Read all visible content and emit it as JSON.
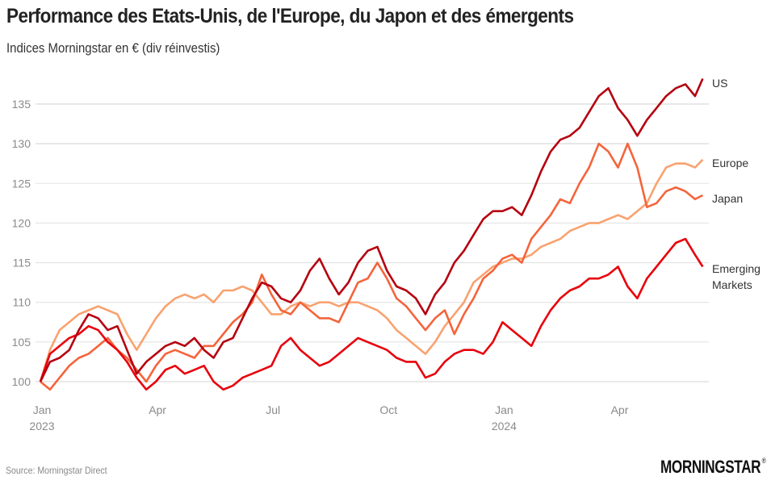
{
  "header": {
    "title": "Performance des Etats-Unis, de l'Europe, du Japon et des émergents",
    "subtitle": "Indices Morningstar en € (div réinvestis)"
  },
  "footer": {
    "source": "Source: Morningstar Direct",
    "logo_text": "MORNINGSTAR",
    "logo_mark": "®"
  },
  "chart_data": {
    "type": "line",
    "title": "Performance des Etats-Unis, de l'Europe, du Japon et des émergents",
    "subtitle": "Indices Morningstar en € (div réinvestis)",
    "xlabel": "",
    "ylabel": "",
    "ylim": [
      98,
      139
    ],
    "xlim_months": [
      0,
      17.3
    ],
    "grid": true,
    "legend": "inline-right",
    "y_ticks": [
      100,
      105,
      110,
      115,
      120,
      125,
      130,
      135
    ],
    "x_ticks": [
      {
        "month": 0,
        "label": "Jan",
        "sublabel": "2023"
      },
      {
        "month": 3,
        "label": "Apr",
        "sublabel": ""
      },
      {
        "month": 6,
        "label": "Jul",
        "sublabel": ""
      },
      {
        "month": 9,
        "label": "Oct",
        "sublabel": ""
      },
      {
        "month": 12,
        "label": "Jan",
        "sublabel": "2024"
      },
      {
        "month": 15,
        "label": "Apr",
        "sublabel": ""
      }
    ],
    "x_months": [
      0,
      0.25,
      0.5,
      0.75,
      1,
      1.25,
      1.5,
      1.75,
      2,
      2.25,
      2.5,
      2.75,
      3,
      3.25,
      3.5,
      3.75,
      4,
      4.25,
      4.5,
      4.75,
      5,
      5.25,
      5.5,
      5.75,
      6,
      6.25,
      6.5,
      6.75,
      7,
      7.25,
      7.5,
      7.75,
      8,
      8.25,
      8.5,
      8.75,
      9,
      9.25,
      9.5,
      9.75,
      10,
      10.25,
      10.5,
      10.75,
      11,
      11.25,
      11.5,
      11.75,
      12,
      12.25,
      12.5,
      12.75,
      13,
      13.25,
      13.5,
      13.75,
      14,
      14.25,
      14.5,
      14.75,
      15,
      15.25,
      15.5,
      15.75,
      16,
      16.25,
      16.5,
      16.75,
      17,
      17.2
    ],
    "series": [
      {
        "name": "US",
        "label_lines": [
          "US"
        ],
        "color": "#b5000f",
        "values": [
          100,
          102.5,
          103,
          104,
          106.5,
          108.5,
          108,
          106.5,
          107,
          104,
          101,
          102.5,
          103.5,
          104.5,
          105,
          104.5,
          105.5,
          104,
          103,
          105,
          105.5,
          108,
          110.5,
          112.5,
          112,
          110.5,
          110,
          111.5,
          114,
          115.5,
          113,
          111,
          112.5,
          115,
          116.5,
          117,
          114,
          112,
          111.5,
          110.5,
          108.5,
          111,
          112.5,
          115,
          116.5,
          118.5,
          120.5,
          121.5,
          121.5,
          122,
          121,
          123.5,
          126.5,
          129,
          130.5,
          131,
          132,
          134,
          136,
          137,
          134.5,
          133,
          131,
          133,
          134.5,
          136,
          137,
          137.5,
          136,
          138.2
        ]
      },
      {
        "name": "Europe",
        "label_lines": [
          "Europe"
        ],
        "color": "#f9a26f",
        "values": [
          100,
          104,
          106.5,
          107.5,
          108.5,
          109,
          109.5,
          109,
          108.5,
          106,
          104,
          106,
          108,
          109.5,
          110.5,
          111,
          110.5,
          111,
          110,
          111.5,
          111.5,
          112,
          111.5,
          110,
          108.5,
          108.5,
          109.5,
          110,
          109.5,
          110,
          110,
          109.5,
          110,
          110,
          109.5,
          109,
          108,
          106.5,
          105.5,
          104.5,
          103.5,
          105,
          107,
          108.5,
          110,
          112.5,
          113.5,
          114.5,
          115,
          115.5,
          115.5,
          116,
          117,
          117.5,
          118,
          119,
          119.5,
          120,
          120,
          120.5,
          121,
          120.5,
          121.5,
          122.5,
          125,
          127,
          127.5,
          127.5,
          127,
          128
        ]
      },
      {
        "name": "Japan",
        "label_lines": [
          "Japan"
        ],
        "color": "#f5643b",
        "values": [
          100,
          99,
          100.5,
          102,
          103,
          103.5,
          104.5,
          105.5,
          104,
          103,
          101.5,
          100,
          102,
          103.5,
          104,
          103.5,
          103,
          104.5,
          104.5,
          106,
          107.5,
          108.5,
          110,
          113.5,
          111,
          109,
          108.5,
          110,
          109,
          108,
          108,
          107.5,
          110,
          112.5,
          113,
          115,
          113,
          110.5,
          109.5,
          108,
          106.5,
          108,
          109,
          106,
          108.5,
          110.5,
          113,
          114,
          115.5,
          116,
          115,
          118,
          119.5,
          121,
          123,
          122.5,
          125,
          127,
          130,
          129,
          127,
          130,
          127,
          122,
          122.5,
          124,
          124.5,
          124,
          123,
          123.5
        ]
      },
      {
        "name": "Emerging Markets",
        "label_lines": [
          "Emerging",
          "Markets"
        ],
        "color": "#e8000c",
        "values": [
          100,
          103.5,
          104.5,
          105.5,
          106,
          107,
          106.5,
          105,
          104,
          102.5,
          100.5,
          99,
          100,
          101.5,
          102,
          101,
          101.5,
          102,
          100,
          99,
          99.5,
          100.5,
          101,
          101.5,
          102,
          104.5,
          105.5,
          104,
          103,
          102,
          102.5,
          103.5,
          104.5,
          105.5,
          105,
          104.5,
          104,
          103,
          102.5,
          102.5,
          100.5,
          101,
          102.5,
          103.5,
          104,
          104,
          103.5,
          105,
          107.5,
          106.5,
          105.5,
          104.5,
          107,
          109,
          110.5,
          111.5,
          112,
          113,
          113,
          113.5,
          114.5,
          112,
          110.5,
          113,
          114.5,
          116,
          117.5,
          118,
          116,
          114.5
        ]
      }
    ]
  }
}
